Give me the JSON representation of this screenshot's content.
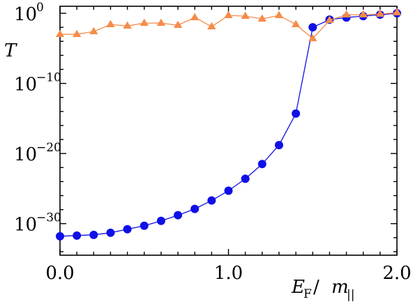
{
  "chart_data": {
    "type": "line",
    "xlabel": {
      "main": "E",
      "sub": "F",
      "sep": " /",
      "main2": "m",
      "sub2": "||"
    },
    "ylabel": "T",
    "y_scale": "log",
    "xlim": [
      0.0,
      2.0
    ],
    "ylim_log10": [
      -34.5,
      1.0
    ],
    "x_ticks": [
      "0.0",
      "1.0",
      "2.0"
    ],
    "y_ticks": [
      {
        "base": "10",
        "exp": "0",
        "log": 0
      },
      {
        "base": "10",
        "exp": "−10",
        "log": -10
      },
      {
        "base": "10",
        "exp": "−20",
        "log": -20
      },
      {
        "base": "10",
        "exp": "−30",
        "log": -30
      }
    ],
    "series": [
      {
        "color": "#1010e6",
        "marker": "circle",
        "x": [
          0.0,
          0.1,
          0.2,
          0.3,
          0.4,
          0.5,
          0.6,
          0.7,
          0.8,
          0.9,
          1.0,
          1.1,
          1.2,
          1.3,
          1.4,
          1.5,
          1.6,
          1.7,
          1.8,
          1.9,
          2.0
        ],
        "log10_y": [
          -31.8,
          -31.7,
          -31.6,
          -31.3,
          -30.8,
          -30.3,
          -29.6,
          -28.8,
          -27.9,
          -26.7,
          -25.3,
          -23.6,
          -21.5,
          -18.8,
          -14.3,
          -2.0,
          -0.9,
          -0.6,
          -0.4,
          -0.2,
          0.0
        ]
      },
      {
        "color": "#f58c4a",
        "marker": "triangle",
        "x": [
          0.0,
          0.1,
          0.2,
          0.3,
          0.4,
          0.5,
          0.6,
          0.7,
          0.8,
          0.9,
          1.0,
          1.1,
          1.2,
          1.3,
          1.4,
          1.5,
          1.6,
          1.7,
          1.8,
          1.9,
          2.0
        ],
        "log10_y": [
          -3.0,
          -3.0,
          -2.6,
          -1.6,
          -1.8,
          -1.4,
          -1.4,
          -1.7,
          -0.6,
          -1.9,
          -0.3,
          -0.4,
          -0.8,
          -0.3,
          -1.6,
          -3.6,
          -1.0,
          -0.2,
          -0.2,
          -0.1,
          0.1
        ]
      }
    ]
  }
}
